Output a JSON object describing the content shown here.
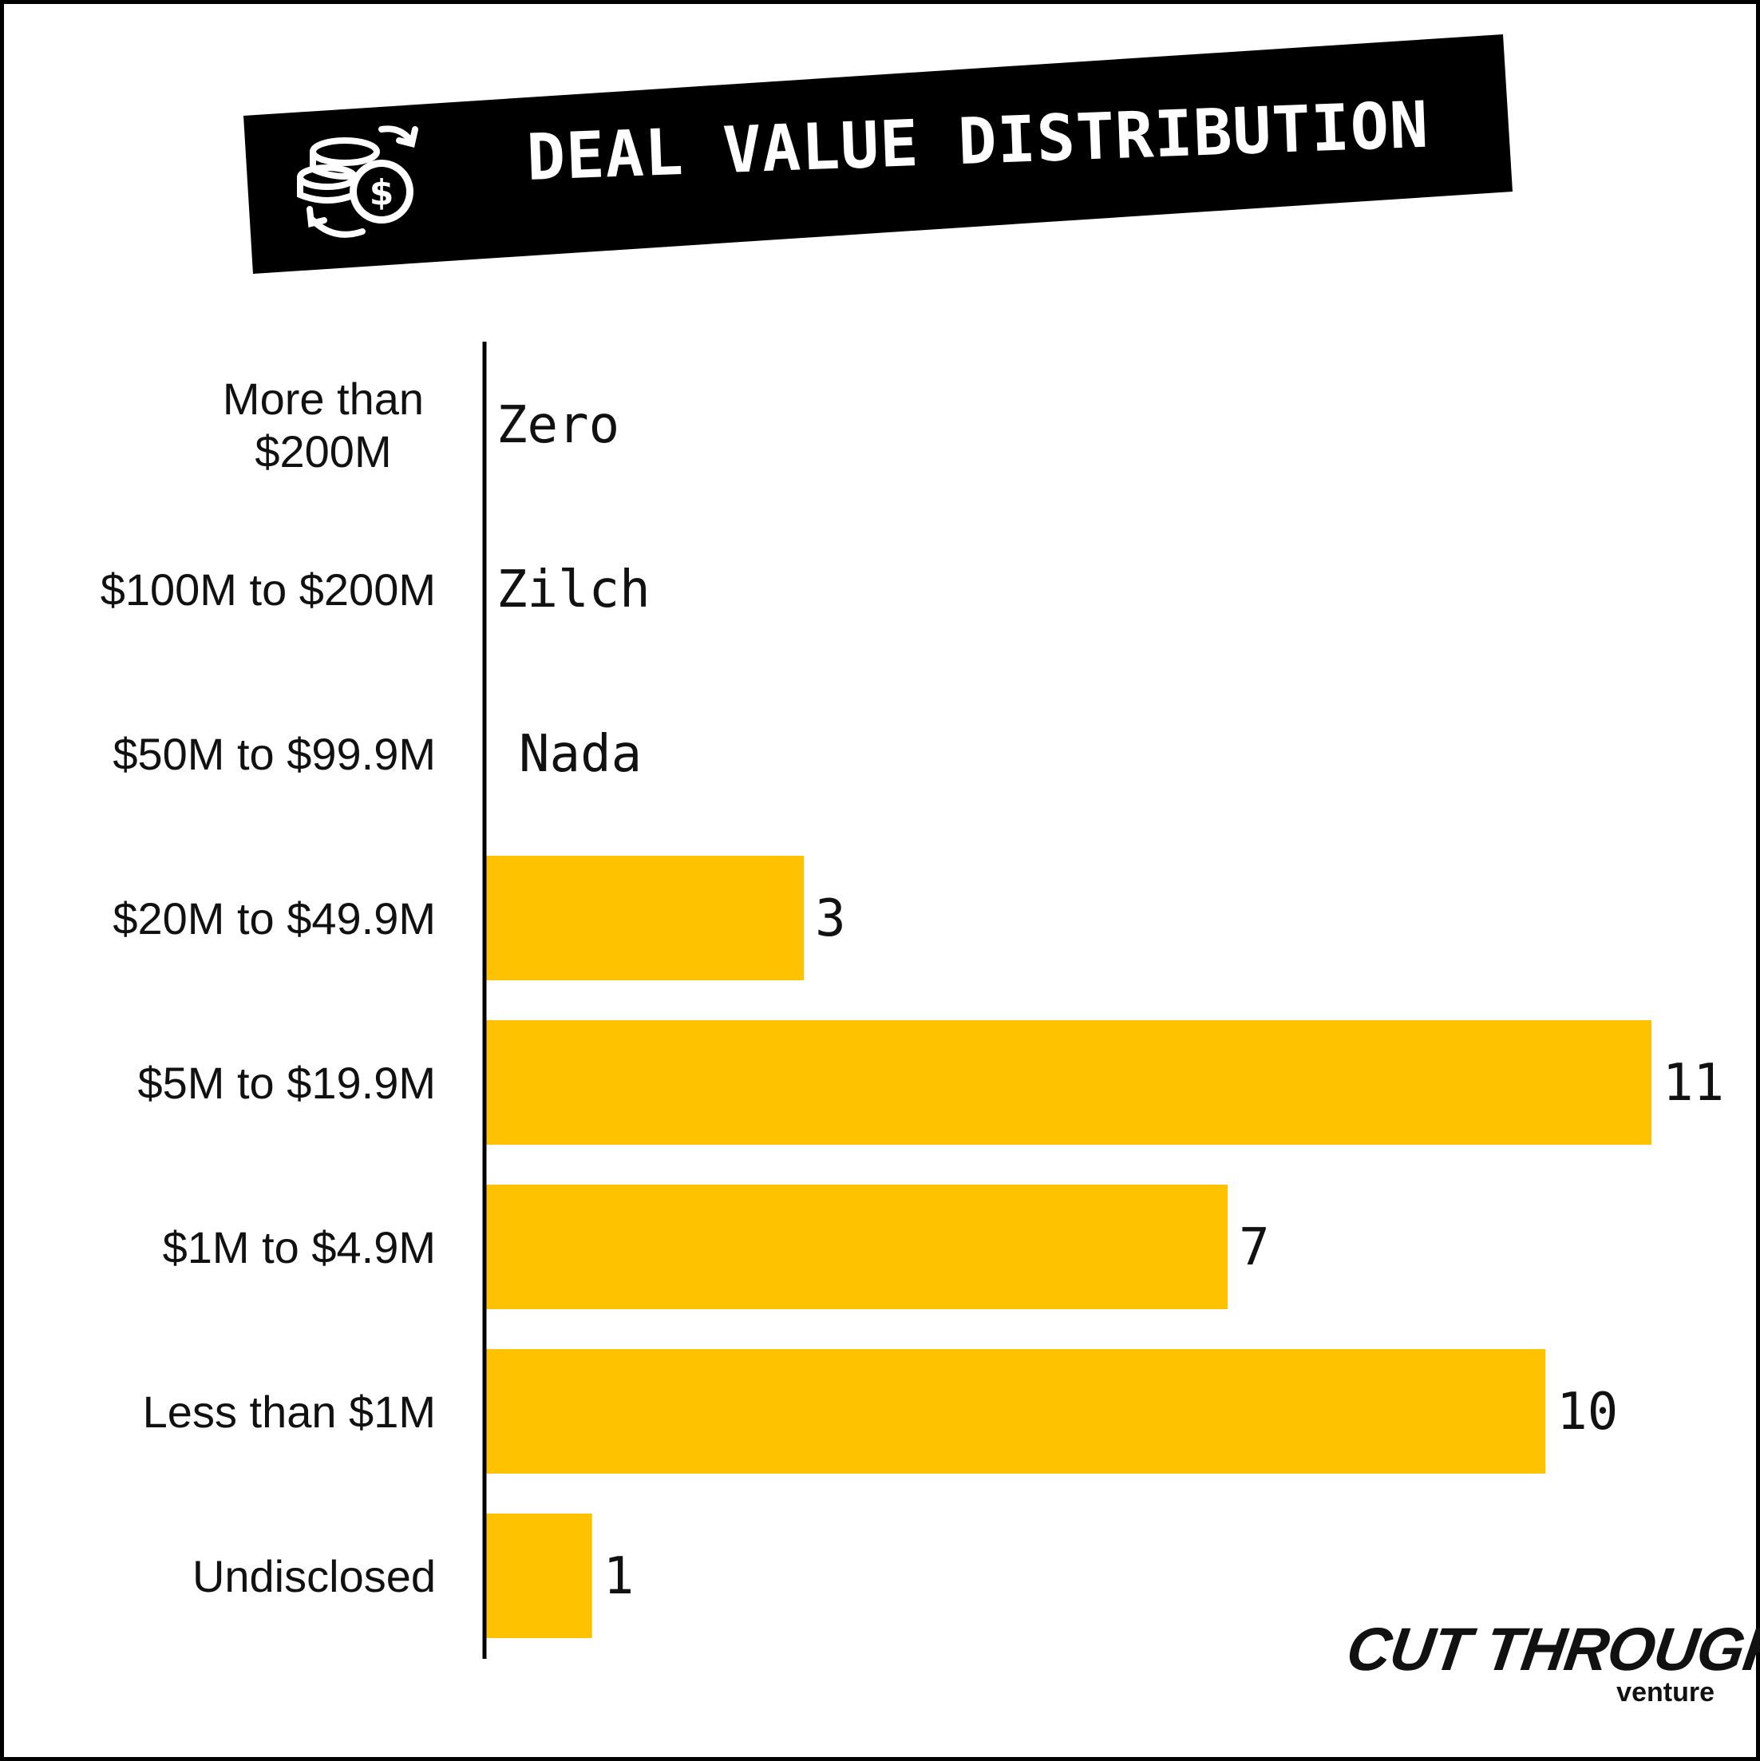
{
  "title": "DEAL VALUE DISTRIBUTION",
  "colors": {
    "bar": "#FEC200",
    "banner": "#000000",
    "text": "#111111"
  },
  "icons": {
    "title": "coins-exchange-icon"
  },
  "logo": {
    "main": "CUT THROUGH",
    "sub": "venture"
  },
  "chart_data": {
    "type": "bar",
    "orientation": "horizontal",
    "title": "DEAL VALUE DISTRIBUTION",
    "xlabel": "",
    "ylabel": "",
    "grid": false,
    "legend": "none",
    "categories": [
      "More than $200M",
      "$100M to $200M",
      "$50M to $99.9M",
      "$20M to $49.9M",
      "$5M to $19.9M",
      "$1M to $4.9M",
      "Less than $1M",
      "Undisclosed"
    ],
    "category_lines": [
      [
        "More than",
        "$200M"
      ],
      [
        "$100M to $200M"
      ],
      [
        "$50M to $99.9M"
      ],
      [
        "$20M to $49.9M"
      ],
      [
        "$5M to $19.9M"
      ],
      [
        "$1M to $4.9M"
      ],
      [
        "Less than $1M"
      ],
      [
        "Undisclosed"
      ]
    ],
    "values": [
      0,
      0,
      0,
      3,
      11,
      7,
      10,
      1
    ],
    "value_labels": [
      "Zero",
      "Zilch",
      "Nada",
      "3",
      "11",
      "7",
      "10",
      "1"
    ],
    "xlim": [
      0,
      11
    ]
  }
}
